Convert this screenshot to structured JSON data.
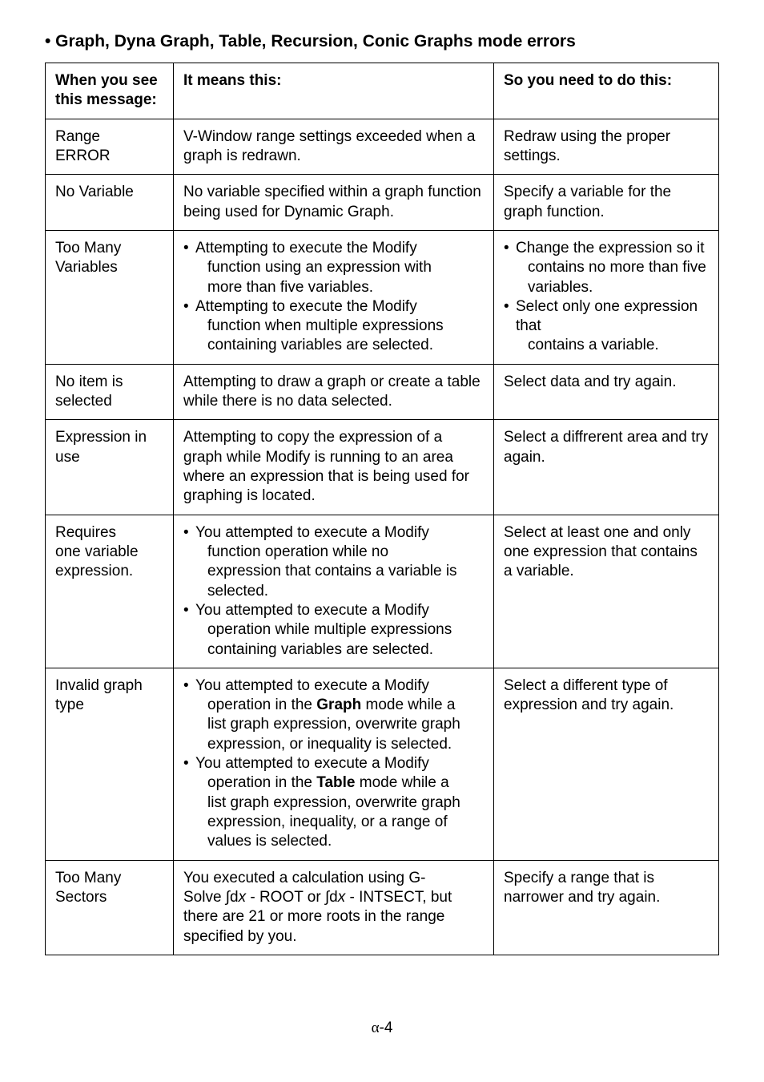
{
  "section_title": "•  Graph, Dyna Graph, Table, Recursion, Conic Graphs mode errors",
  "headers": {
    "col1_l1": "When you see",
    "col1_l2": "this message:",
    "col2": "It means this:",
    "col3": "So you need to do this:"
  },
  "rows": [
    {
      "msg_l1": "Range",
      "msg_l2": "ERROR",
      "meaning": "V-Window range settings exceeded when a graph is redrawn.",
      "action": "Redraw using the proper settings."
    },
    {
      "msg": "No Variable",
      "meaning": "No variable specified within a graph function being used for Dynamic Graph.",
      "action": "Specify a variable for the graph function."
    },
    {
      "msg_l1": "Too Many",
      "msg_l2": "Variables",
      "meaning_b1_lead": "Attempting to execute the Modify",
      "meaning_b1_cont1": "function using an expression with",
      "meaning_b1_cont2": "more than five variables.",
      "meaning_b2_lead": "Attempting to execute the Modify",
      "meaning_b2_cont1": "function when multiple expressions",
      "meaning_b2_cont2": "containing variables are selected.",
      "action_b1_lead": "Change the expression so it",
      "action_b1_cont1": "contains no more than five",
      "action_b1_cont2": "variables.",
      "action_b2_lead": "Select only one expression that",
      "action_b2_cont1": "contains a variable."
    },
    {
      "msg_l1": "No item is",
      "msg_l2": "selected",
      "meaning": "Attempting to draw a graph or create a table while there is no data selected.",
      "action": "Select data and try again."
    },
    {
      "msg_l1": "Expression in",
      "msg_l2": "use",
      "meaning": "Attempting to copy the expression of a graph while Modify is running to an area where an expression that is being used for graphing is located.",
      "action": "Select a diffrerent area and try again."
    },
    {
      "msg_l1": "Requires",
      "msg_l2": "one variable",
      "msg_l3": "expression.",
      "meaning_b1_lead": "You attempted to execute a Modify",
      "meaning_b1_cont1": "function operation while no",
      "meaning_b1_cont2": "expression that contains a variable is",
      "meaning_b1_cont3": "selected.",
      "meaning_b2_lead": "You attempted to execute a Modify",
      "meaning_b2_cont1": "operation while multiple expressions",
      "meaning_b2_cont2": "containing variables are selected.",
      "action": "Select at least one and only one expression that contains a variable."
    },
    {
      "msg_l1": "Invalid graph",
      "msg_l2": "type",
      "meaning_b1_lead": "You attempted to execute a Modify",
      "meaning_b1_c1a": "operation in the ",
      "meaning_b1_c1b": "Graph",
      "meaning_b1_c1c": " mode while a",
      "meaning_b1_c2": "list graph expression, overwrite graph",
      "meaning_b1_c3": "expression, or inequality is selected.",
      "meaning_b2_lead": "You attempted to execute a Modify",
      "meaning_b2_c1a": "operation in the ",
      "meaning_b2_c1b": "Table",
      "meaning_b2_c1c": " mode while a",
      "meaning_b2_c2": "list graph expression, overwrite graph",
      "meaning_b2_c3": "expression, inequality, or a range of",
      "meaning_b2_c4": "values is selected.",
      "action": "Select a different type of expression and try again."
    },
    {
      "msg_l1": "Too Many",
      "msg_l2": "Sectors",
      "meaning_l1": "You executed a calculation using G-",
      "meaning_l2a": "Solve ∫d",
      "meaning_l2b": "x",
      "meaning_l2c": " - ROOT or ∫d",
      "meaning_l2d": "x",
      "meaning_l2e": " - INTSECT, but",
      "meaning_l3": "there are 21 or more roots in the range",
      "meaning_l4": "specified by you.",
      "action": "Specify a range that is narrower and try again."
    }
  ],
  "page_number": "-4",
  "page_alpha": "α"
}
